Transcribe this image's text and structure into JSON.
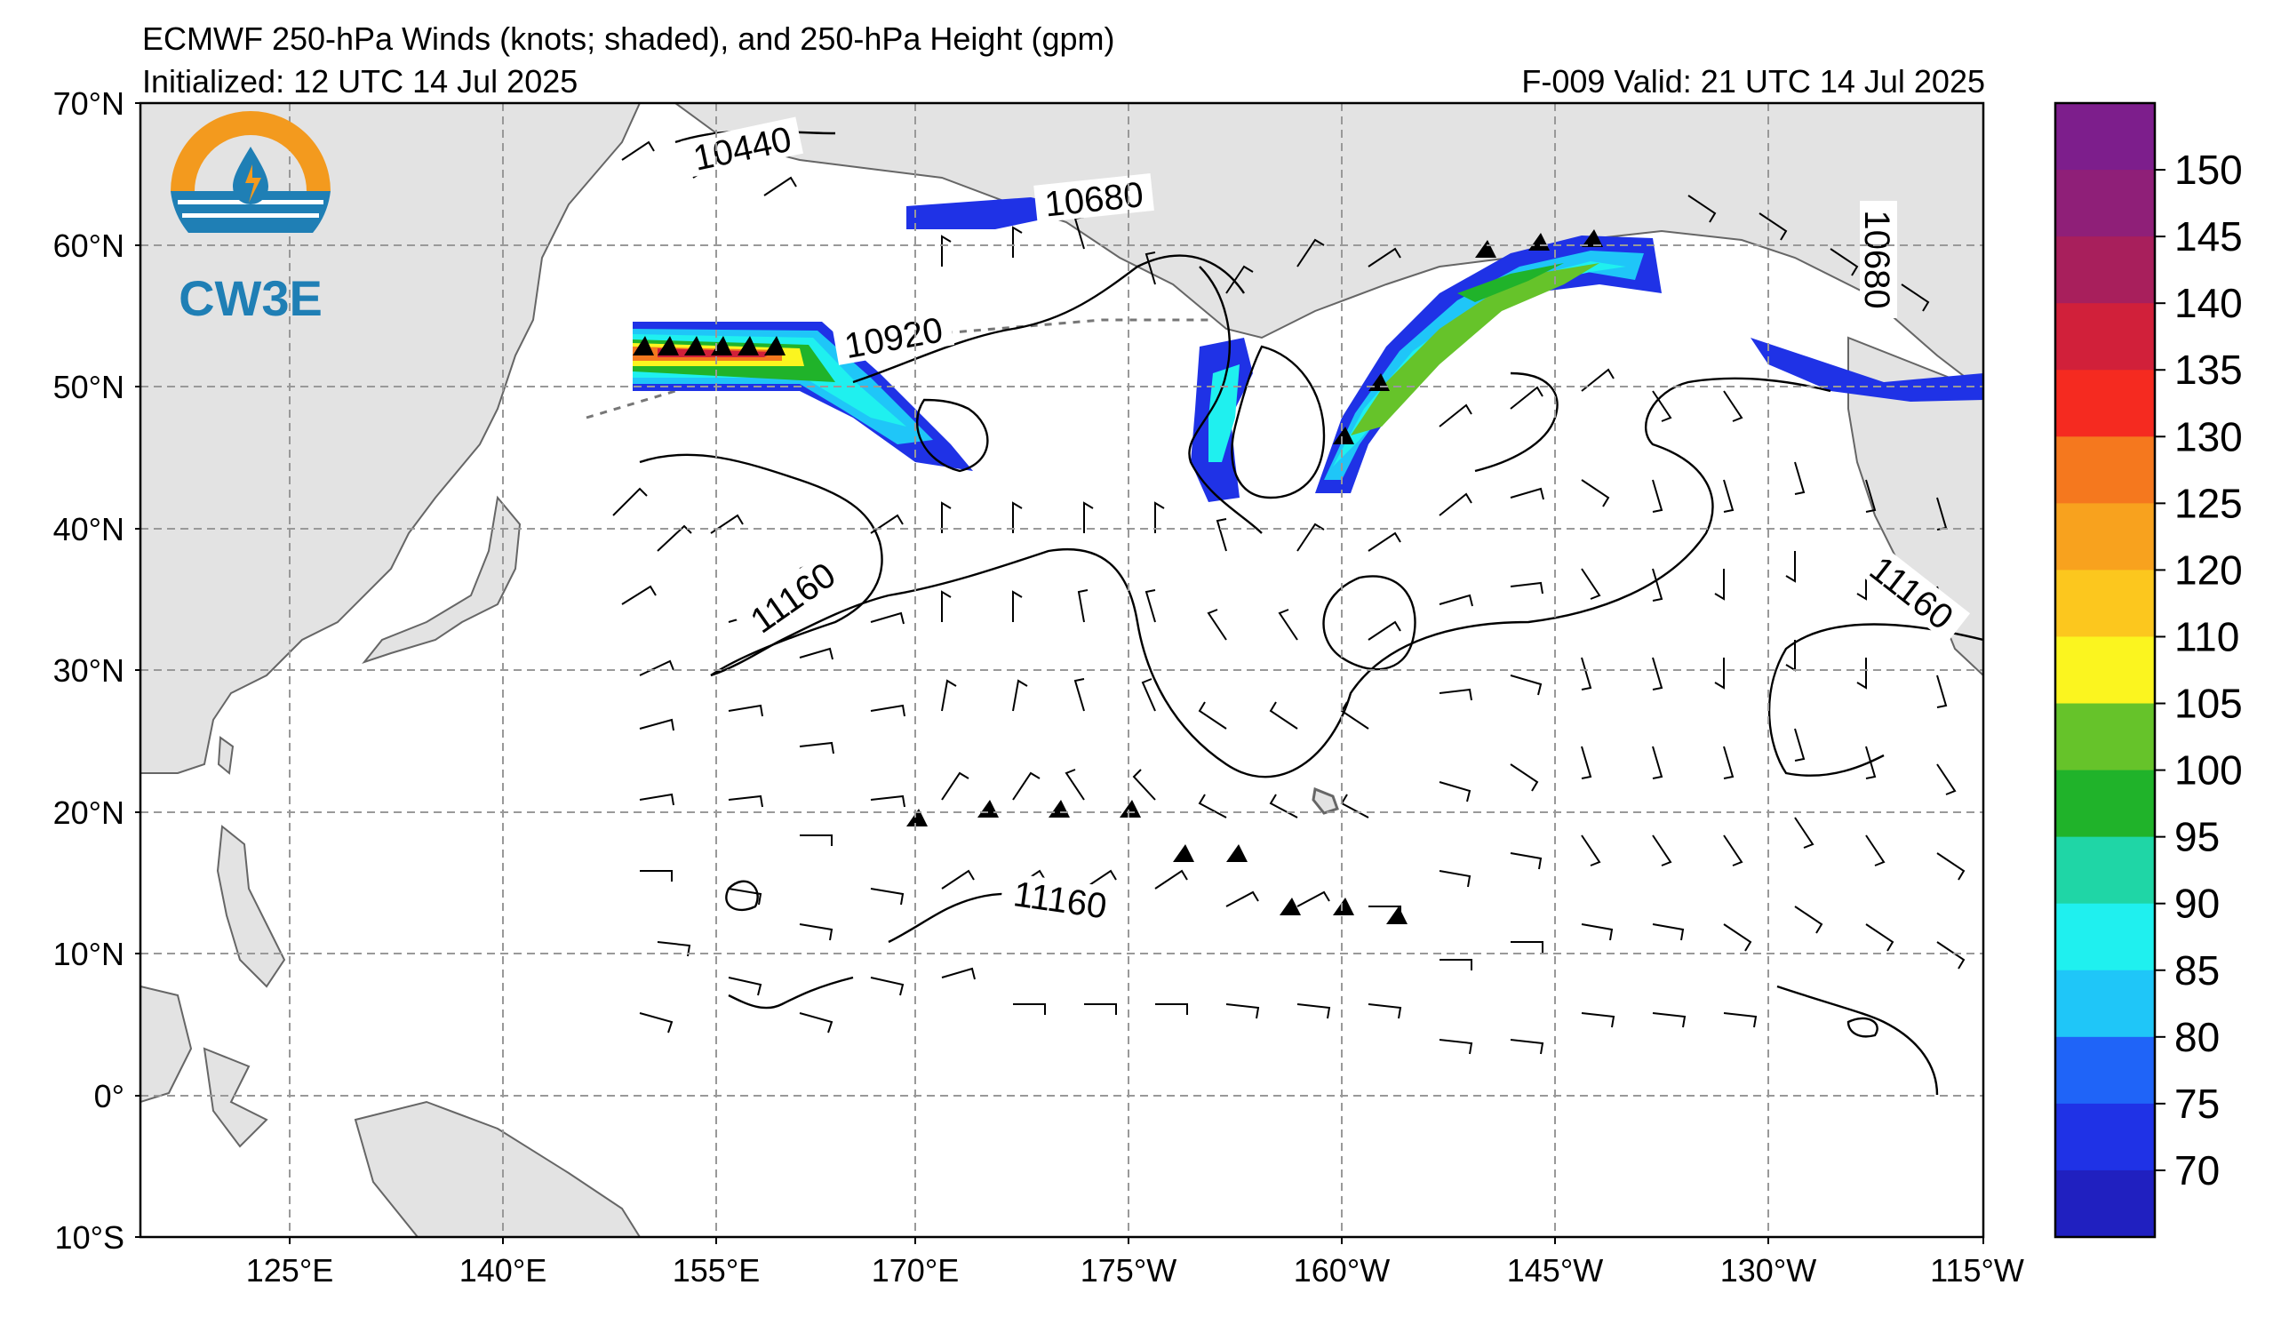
{
  "header": {
    "title": "ECMWF 250-hPa Winds (knots; shaded), and 250-hPa Height (gpm)",
    "initialized": "Initialized: 12 UTC 14 Jul 2025",
    "valid": "F-009  Valid: 21 UTC 14 Jul 2025"
  },
  "logo": {
    "text": "CW3E",
    "colors": {
      "orange": "#f39a1e",
      "blue": "#1f7fb5"
    }
  },
  "map": {
    "lat_labels": [
      "70°N",
      "60°N",
      "50°N",
      "40°N",
      "30°N",
      "20°N",
      "10°N",
      "0°",
      "10°S"
    ],
    "lon_labels": [
      "125°E",
      "140°E",
      "155°E",
      "170°E",
      "175°W",
      "160°W",
      "145°W",
      "130°W",
      "115°W"
    ],
    "lat_range": [
      -10,
      70
    ],
    "lon_range": [
      110,
      245
    ],
    "gridlines": true,
    "land_color": "#e3e3e3"
  },
  "contours": {
    "labels": [
      "10440",
      "10680",
      "10920",
      "11160",
      "11160",
      "10680",
      "11160"
    ]
  },
  "colorbar": {
    "ticks": [
      "150",
      "145",
      "140",
      "135",
      "130",
      "125",
      "120",
      "110",
      "105",
      "100",
      "95",
      "90",
      "85",
      "80",
      "75",
      "70"
    ],
    "colors": [
      "#7d1e8c",
      "#8f1f78",
      "#a81f5c",
      "#d1203a",
      "#f52a20",
      "#f5781e",
      "#f8a21e",
      "#fcc71e",
      "#fbf51f",
      "#66c32a",
      "#20b32a",
      "#1fd6a6",
      "#1ff0ef",
      "#1fc6f8",
      "#1f64f8",
      "#1f32e6",
      "#2020c0"
    ]
  }
}
